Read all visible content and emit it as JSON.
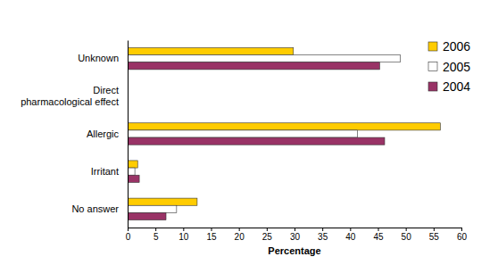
{
  "chart_data": {
    "type": "bar",
    "orientation": "horizontal",
    "categories": [
      "Unknown",
      "Direct pharmacological effect",
      "Allergic",
      "Irritant",
      "No answer"
    ],
    "series": [
      {
        "name": "2006",
        "color": "#ffcc00",
        "values": [
          29.8,
          0,
          56.2,
          1.8,
          12.5
        ]
      },
      {
        "name": "2005",
        "color": "#ffffff",
        "values": [
          49,
          0,
          41.3,
          1.3,
          8.8
        ]
      },
      {
        "name": "2004",
        "color": "#993366",
        "values": [
          45.3,
          0,
          46.2,
          2.1,
          6.9
        ]
      }
    ],
    "xlabel": "Percentage",
    "xlim": [
      0,
      60
    ],
    "xticks": [
      0,
      5,
      10,
      15,
      20,
      25,
      30,
      35,
      40,
      45,
      50,
      55,
      60
    ],
    "legend": "top-right",
    "grid": false
  }
}
